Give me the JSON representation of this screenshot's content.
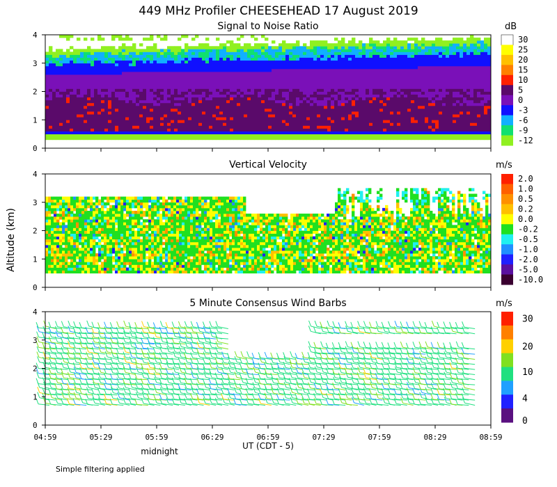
{
  "figure": {
    "title": "449 MHz Profiler CHEESEHEAD 17 August 2019",
    "ylabel": "Altitude (km)",
    "xlabel": "UT  (CDT - 5)",
    "midnight_label": "midnight",
    "footnote": "Simple filtering applied",
    "x_ticks": [
      "04:59",
      "05:29",
      "05:59",
      "06:29",
      "06:59",
      "07:29",
      "07:59",
      "08:29",
      "08:59"
    ],
    "y_ticks": [
      "0",
      "1",
      "2",
      "3",
      "4"
    ]
  },
  "chart_data": [
    {
      "type": "heatmap",
      "title": "Signal to Noise Ratio",
      "xlim": [
        "04:59",
        "08:59"
      ],
      "ylim": [
        0,
        4
      ],
      "colorbar": {
        "unit": "dB",
        "labels": [
          "30",
          "25",
          "20",
          "15",
          "10",
          "5",
          "0",
          "-3",
          "-6",
          "-9",
          "-12"
        ],
        "colors": [
          "#ffffff",
          "#ffff00",
          "#ffc000",
          "#ff8000",
          "#ff2000",
          "#5a0a6a",
          "#7a10b8",
          "#1010ff",
          "#10b0ff",
          "#10e070",
          "#90f020"
        ]
      },
      "layers": [
        {
          "altitude_km": [
            0.3,
            0.5
          ],
          "value_db": -12
        },
        {
          "altitude_km": [
            0.5,
            0.6
          ],
          "value_db": -3
        },
        {
          "altitude_km": [
            0.6,
            2.0
          ],
          "value_db": 5
        },
        {
          "altitude_km": [
            2.0,
            2.6
          ],
          "value_db": 0
        },
        {
          "altitude_km": [
            2.6,
            3.0
          ],
          "value_db": -3
        },
        {
          "altitude_km": [
            3.0,
            3.4
          ],
          "value_db": -9
        },
        {
          "altitude_km": [
            3.4,
            4.0
          ],
          "value_db": -12
        }
      ]
    },
    {
      "type": "heatmap",
      "title": "Vertical Velocity",
      "xlim": [
        "04:59",
        "08:59"
      ],
      "ylim": [
        0,
        4
      ],
      "colorbar": {
        "unit": "m/s",
        "labels": [
          "2.0",
          "1.0",
          "0.5",
          "0.2",
          "0.0",
          "-0.2",
          "-0.5",
          "-1.0",
          "-2.0",
          "-5.0",
          "-10.0"
        ],
        "colors": [
          "#ff2000",
          "#ff6000",
          "#ff9000",
          "#ffc000",
          "#ffff00",
          "#20e020",
          "#20f0f0",
          "#2090ff",
          "#2020ff",
          "#5a10a0",
          "#3a0030"
        ]
      },
      "typical_range_m_s": [
        -0.5,
        0.5
      ],
      "valid_altitude_km": [
        0.5,
        3.2
      ]
    },
    {
      "type": "scatter",
      "title": "5 Minute Consensus Wind Barbs",
      "xlim": [
        "04:59",
        "08:59"
      ],
      "ylim": [
        0,
        4
      ],
      "colorbar": {
        "unit": "m/s",
        "labels": [
          "30",
          "20",
          "10",
          "4",
          "0"
        ],
        "colors": [
          "#ff2000",
          "#ff8000",
          "#ffd000",
          "#80e020",
          "#20e080",
          "#20a0ff",
          "#2020ff",
          "#5a1080"
        ]
      },
      "typical_speed_m_s": [
        4,
        10
      ],
      "valid_altitude_km": [
        0.6,
        3.6
      ]
    }
  ]
}
